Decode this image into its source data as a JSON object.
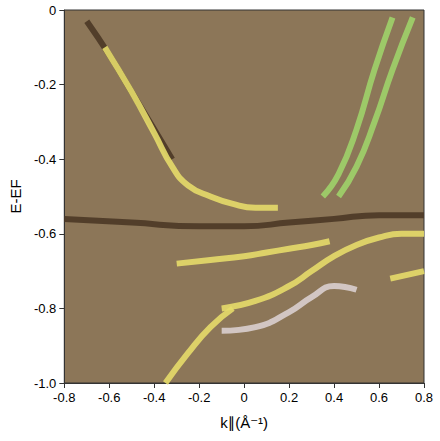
{
  "chart_data": {
    "type": "line",
    "x_label": "k∥(Å⁻¹)",
    "y_label": "E-EF",
    "xlim": [
      -0.8,
      0.8
    ],
    "ylim": [
      -1.0,
      0
    ],
    "xticks": [
      -0.8,
      -0.6,
      -0.4,
      -0.2,
      0,
      0.2,
      0.4,
      0.6,
      0.8
    ],
    "yticks": [
      0,
      -0.2,
      -0.4,
      -0.6,
      -0.8,
      {
        "value": -1.0,
        "label": "-1.0"
      }
    ],
    "grid": false,
    "series": [
      {
        "color": "#4b3826",
        "x": [
          -0.8,
          -0.5,
          -0.2,
          0,
          0.2,
          0.4,
          0.6,
          0.8
        ],
        "values": [
          -0.56,
          -0.57,
          -0.58,
          -0.58,
          -0.57,
          -0.56,
          -0.55,
          -0.55
        ]
      },
      {
        "color": "#4b3826",
        "x": [
          -0.7,
          -0.6,
          -0.5,
          -0.4,
          -0.32
        ],
        "values": [
          -0.03,
          -0.12,
          -0.22,
          -0.32,
          -0.4
        ]
      },
      {
        "color": "#e6dc6a",
        "x": [
          -0.62,
          -0.5,
          -0.4,
          -0.32,
          -0.25,
          -0.15,
          -0.05,
          0.05,
          0.15
        ],
        "values": [
          -0.1,
          -0.22,
          -0.33,
          -0.42,
          -0.47,
          -0.5,
          -0.52,
          -0.53,
          -0.53
        ]
      },
      {
        "color": "#9fd36a",
        "x": [
          0.35,
          0.42,
          0.5,
          0.58,
          0.66
        ],
        "values": [
          -0.5,
          -0.44,
          -0.32,
          -0.16,
          -0.02
        ]
      },
      {
        "color": "#9fd36a",
        "x": [
          0.42,
          0.5,
          0.58,
          0.66,
          0.75
        ],
        "values": [
          -0.5,
          -0.42,
          -0.3,
          -0.16,
          -0.02
        ]
      },
      {
        "color": "#e6dc6a",
        "x": [
          -0.3,
          -0.15,
          0,
          0.1,
          0.2,
          0.3,
          0.38
        ],
        "values": [
          -0.68,
          -0.67,
          -0.66,
          -0.65,
          -0.64,
          -0.63,
          -0.62
        ]
      },
      {
        "color": "#e6dc6a",
        "x": [
          -0.1,
          0.05,
          0.2,
          0.3,
          0.4,
          0.5,
          0.6,
          0.7,
          0.8
        ],
        "values": [
          -0.8,
          -0.78,
          -0.74,
          -0.7,
          -0.66,
          -0.63,
          -0.61,
          -0.6,
          -0.6
        ]
      },
      {
        "color": "#d9cfcf",
        "x": [
          -0.1,
          0.05,
          0.2,
          0.3,
          0.4,
          0.5
        ],
        "values": [
          -0.86,
          -0.85,
          -0.81,
          -0.77,
          -0.74,
          -0.75
        ]
      },
      {
        "color": "#e6dc6a",
        "x": [
          -0.35,
          -0.25,
          -0.15,
          -0.05
        ],
        "values": [
          -1.0,
          -0.92,
          -0.85,
          -0.8
        ]
      },
      {
        "color": "#e6dc6a",
        "x": [
          0.65,
          0.8
        ],
        "values": [
          -0.72,
          -0.7
        ]
      }
    ]
  }
}
